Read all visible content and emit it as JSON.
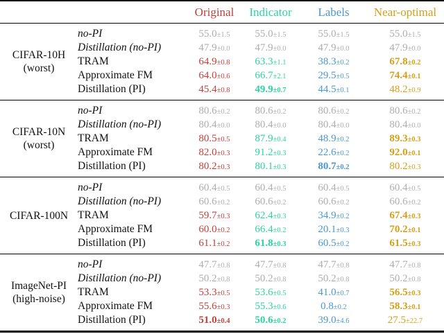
{
  "table": {
    "muted_color": "#aeaeae",
    "columns": [
      {
        "label": "Original",
        "color": "#c2403a"
      },
      {
        "label": "Indicator",
        "color": "#2cd3a2"
      },
      {
        "label": "Labels",
        "color": "#4a97d3"
      },
      {
        "label": "Near-optimal",
        "color": "#d2a019"
      }
    ],
    "sections": [
      {
        "dataset": "CIFAR-10H",
        "dataset_sub": "(worst)",
        "rows": [
          {
            "method": "no-PI",
            "italic": true,
            "muted": true,
            "cells": [
              {
                "value": "55.0",
                "pm": "±1.5"
              },
              {
                "value": "55.0",
                "pm": "±1.5"
              },
              {
                "value": "55.0",
                "pm": "±1.5"
              },
              {
                "value": "55.0",
                "pm": "±1.5"
              }
            ]
          },
          {
            "method": "Distillation (no-PI)",
            "italic": true,
            "muted": true,
            "cells": [
              {
                "value": "47.9",
                "pm": "±0.0"
              },
              {
                "value": "47.9",
                "pm": "±0.0"
              },
              {
                "value": "47.9",
                "pm": "±0.0"
              },
              {
                "value": "47.9",
                "pm": "±0.0"
              }
            ]
          },
          {
            "method": "TRAM",
            "cells": [
              {
                "value": "64.9",
                "pm": "±0.8"
              },
              {
                "value": "63.3",
                "pm": "±1.1"
              },
              {
                "value": "38.3",
                "pm": "±0.2"
              },
              {
                "value": "67.8",
                "pm": "±0.2",
                "bold": true
              }
            ]
          },
          {
            "method": "Approximate FM",
            "cells": [
              {
                "value": "64.0",
                "pm": "±0.6"
              },
              {
                "value": "66.7",
                "pm": "±2.1"
              },
              {
                "value": "29.5",
                "pm": "±0.5"
              },
              {
                "value": "74.4",
                "pm": "±0.1",
                "bold": true
              }
            ]
          },
          {
            "method": "Distillation (PI)",
            "cells": [
              {
                "value": "45.4",
                "pm": "±0.8"
              },
              {
                "value": "49.9",
                "pm": "±0.7",
                "bold": true
              },
              {
                "value": "44.5",
                "pm": "±0.1"
              },
              {
                "value": "48.2",
                "pm": "±0.9"
              }
            ]
          }
        ]
      },
      {
        "dataset": "CIFAR-10N",
        "dataset_sub": "(worst)",
        "rows": [
          {
            "method": "no-PI",
            "italic": true,
            "muted": true,
            "cells": [
              {
                "value": "80.6",
                "pm": "±0.2"
              },
              {
                "value": "80.6",
                "pm": "±0.2"
              },
              {
                "value": "80.6",
                "pm": "±0.2"
              },
              {
                "value": "80.6",
                "pm": "±0.2"
              }
            ]
          },
          {
            "method": "Distillation (no-PI)",
            "italic": true,
            "muted": true,
            "cells": [
              {
                "value": "80.4",
                "pm": "±0.0"
              },
              {
                "value": "80.4",
                "pm": "±0.0"
              },
              {
                "value": "80.4",
                "pm": "±0.0"
              },
              {
                "value": "80.4",
                "pm": "±0.0"
              }
            ]
          },
          {
            "method": "TRAM",
            "cells": [
              {
                "value": "80.5",
                "pm": "±0.5"
              },
              {
                "value": "87.9",
                "pm": "±0.4"
              },
              {
                "value": "48.9",
                "pm": "±0.2"
              },
              {
                "value": "89.3",
                "pm": "±0.3",
                "bold": true
              }
            ]
          },
          {
            "method": "Approximate FM",
            "cells": [
              {
                "value": "82.0",
                "pm": "±0.3"
              },
              {
                "value": "91.2",
                "pm": "±0.3"
              },
              {
                "value": "22.6",
                "pm": "±0.2"
              },
              {
                "value": "92.0",
                "pm": "±0.1",
                "bold": true
              }
            ]
          },
          {
            "method": "Distillation (PI)",
            "cells": [
              {
                "value": "80.2",
                "pm": "±0.3"
              },
              {
                "value": "80.1",
                "pm": "±0.3"
              },
              {
                "value": "80.7",
                "pm": "±0.2",
                "bold": true
              },
              {
                "value": "80.2",
                "pm": "±0.3"
              }
            ]
          }
        ]
      },
      {
        "dataset": "CIFAR-100N",
        "dataset_sub": "",
        "rows": [
          {
            "method": "no-PI",
            "italic": true,
            "muted": true,
            "cells": [
              {
                "value": "60.4",
                "pm": "±0.5"
              },
              {
                "value": "60.4",
                "pm": "±0.5"
              },
              {
                "value": "60.4",
                "pm": "±0.5"
              },
              {
                "value": "60.4",
                "pm": "±0.5"
              }
            ]
          },
          {
            "method": "Distillation (no-PI)",
            "italic": true,
            "muted": true,
            "cells": [
              {
                "value": "60.6",
                "pm": "±0.2"
              },
              {
                "value": "60.6",
                "pm": "±0.2"
              },
              {
                "value": "60.6",
                "pm": "±0.2"
              },
              {
                "value": "60.6",
                "pm": "±0.2"
              }
            ]
          },
          {
            "method": "TRAM",
            "cells": [
              {
                "value": "59.7",
                "pm": "±0.3"
              },
              {
                "value": "62.4",
                "pm": "±0.3"
              },
              {
                "value": "34.9",
                "pm": "±0.2"
              },
              {
                "value": "67.4",
                "pm": "±0.3",
                "bold": true
              }
            ]
          },
          {
            "method": "Approximate FM",
            "cells": [
              {
                "value": "60.0",
                "pm": "±0.2"
              },
              {
                "value": "66.4",
                "pm": "±0.2"
              },
              {
                "value": "20.1",
                "pm": "±0.3"
              },
              {
                "value": "70.2",
                "pm": "±0.1",
                "bold": true
              }
            ]
          },
          {
            "method": "Distillation (PI)",
            "cells": [
              {
                "value": "61.1",
                "pm": "±0.2"
              },
              {
                "value": "61.8",
                "pm": "±0.3",
                "bold": true
              },
              {
                "value": "60.5",
                "pm": "±0.2"
              },
              {
                "value": "61.5",
                "pm": "±0.3",
                "bold": true
              }
            ]
          }
        ]
      },
      {
        "dataset": "ImageNet-PI",
        "dataset_sub": "(high-noise)",
        "rows": [
          {
            "method": "no-PI",
            "italic": true,
            "muted": true,
            "cells": [
              {
                "value": "47.7",
                "pm": "±0.8"
              },
              {
                "value": "47.7",
                "pm": "±0.8"
              },
              {
                "value": "47.7",
                "pm": "±0.8"
              },
              {
                "value": "47.7",
                "pm": "±0.8"
              }
            ]
          },
          {
            "method": "Distillation (no-PI)",
            "italic": true,
            "muted": true,
            "cells": [
              {
                "value": "50.2",
                "pm": "±0.8"
              },
              {
                "value": "50.2",
                "pm": "±0.8"
              },
              {
                "value": "50.2",
                "pm": "±0.8"
              },
              {
                "value": "50.2",
                "pm": "±0.8"
              }
            ]
          },
          {
            "method": "TRAM",
            "cells": [
              {
                "value": "53.3",
                "pm": "±0.5"
              },
              {
                "value": "53.6",
                "pm": "±0.5"
              },
              {
                "value": "41.0",
                "pm": "±0.7"
              },
              {
                "value": "56.5",
                "pm": "±0.3",
                "bold": true
              }
            ]
          },
          {
            "method": "Approximate FM",
            "cells": [
              {
                "value": "55.6",
                "pm": "±0.3"
              },
              {
                "value": "55.3",
                "pm": "±0.6"
              },
              {
                "value": "0.8",
                "pm": "±0.2"
              },
              {
                "value": "58.3",
                "pm": "±0.1",
                "bold": true
              }
            ]
          },
          {
            "method": "Distillation (PI)",
            "cells": [
              {
                "value": "51.0",
                "pm": "±0.4",
                "bold": true
              },
              {
                "value": "50.6",
                "pm": "±0.2",
                "bold": true
              },
              {
                "value": "39.0",
                "pm": "±4.6"
              },
              {
                "value": "27.5",
                "pm": "±22.7"
              }
            ]
          }
        ]
      }
    ]
  }
}
